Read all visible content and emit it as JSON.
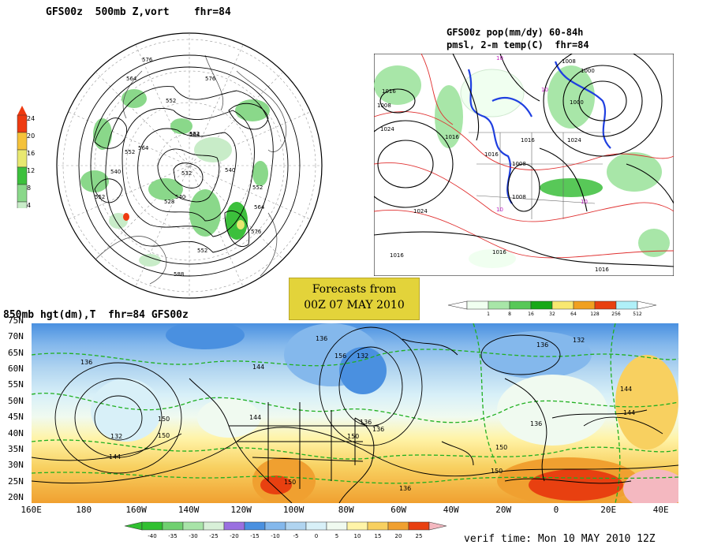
{
  "panel_500mb": {
    "title": "GFS00z  500mb Z,vort    fhr=84",
    "colorbar_labels": [
      "24",
      "20",
      "16",
      "12",
      "8",
      "4"
    ],
    "colorbar_colors": [
      "#ee3a10",
      "#f5c23a",
      "#e8e870",
      "#3cc03c",
      "#8ad88a",
      "#c8ecc8"
    ],
    "contour_labels": [
      "576",
      "576",
      "564",
      "552",
      "552",
      "564",
      "540",
      "552",
      "552",
      "564",
      "540",
      "532",
      "528",
      "540",
      "552",
      "564",
      "576",
      "552",
      "588"
    ]
  },
  "panel_pmsl": {
    "title_line1": "GFS00z pop(mm/dy) 60-84h",
    "title_line2": "pmsl, 2-m temp(C)  fhr=84",
    "isobar_labels": [
      "1008",
      "1000",
      "1016",
      "1008",
      "1000",
      "1024",
      "1016",
      "1016",
      "1008",
      "1024",
      "1008",
      "1024",
      "1016",
      "1016",
      "1016",
      "1016"
    ],
    "temp_labels": [
      "10",
      "10",
      "10",
      "10"
    ],
    "colorbar_values": [
      "1",
      "8",
      "16",
      "32",
      "64",
      "128",
      "256",
      "512"
    ],
    "colorbar_colors": [
      "#f0fff0",
      "#a8e6a8",
      "#58c858",
      "#18a818",
      "#f8e870",
      "#f0a020",
      "#e84010",
      "#b0f0f8"
    ]
  },
  "forecast_info": {
    "line1": "Forecasts from",
    "line2": "00Z 07 MAY 2010"
  },
  "panel_850mb": {
    "title": "850mb hgt(dm),T  fhr=84 GFS00z",
    "lat_labels": [
      "75N",
      "70N",
      "65N",
      "60N",
      "55N",
      "50N",
      "45N",
      "40N",
      "35N",
      "30N",
      "25N",
      "20N"
    ],
    "lon_labels": [
      "160E",
      "180",
      "160W",
      "140W",
      "120W",
      "100W",
      "80W",
      "60W",
      "40W",
      "20W",
      "0",
      "20E",
      "40E"
    ],
    "height_labels": [
      "136",
      "136",
      "144",
      "132",
      "136",
      "132",
      "150",
      "150",
      "144",
      "136",
      "150",
      "136",
      "132",
      "144",
      "150",
      "150",
      "136",
      "136",
      "144",
      "150",
      "156",
      "144"
    ],
    "colorbar_values": [
      "-40",
      "-35",
      "-30",
      "-25",
      "-20",
      "-15",
      "-10",
      "-5",
      "0",
      "5",
      "10",
      "15",
      "20",
      "25"
    ],
    "colorbar_colors": [
      "#30c030",
      "#70d070",
      "#a8e4a8",
      "#d8f0d8",
      "#9a70e0",
      "#4a90e0",
      "#84b8ec",
      "#b0d4f0",
      "#d8f0f8",
      "#f0faf0",
      "#fff4a8",
      "#f8d060",
      "#f0a030",
      "#e84010",
      "#f4b8c0"
    ]
  },
  "verif_time": "verif time: Mon 10 MAY 2010 12Z"
}
